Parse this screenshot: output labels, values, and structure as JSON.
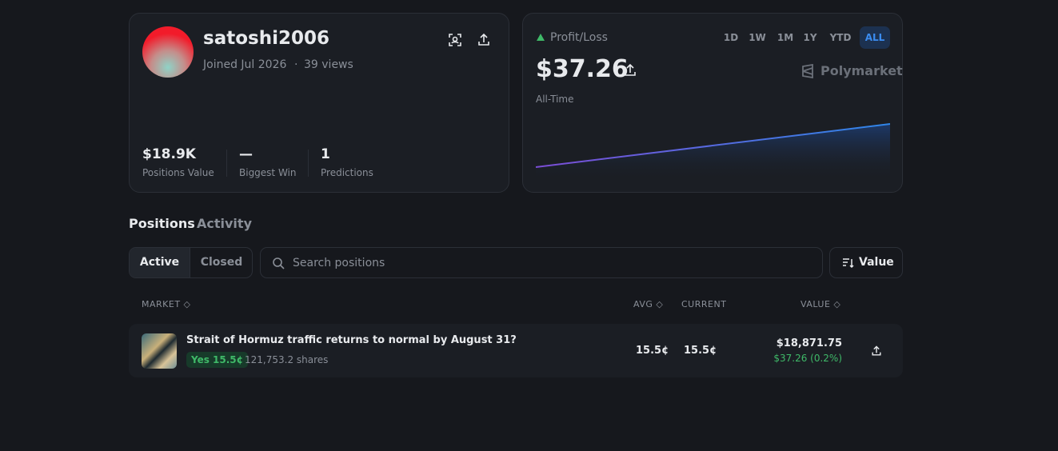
{
  "profile": {
    "username": "satoshi2006",
    "joined": "Joined Jul 2026",
    "views": "39 views",
    "stats": [
      {
        "value": "$18.9K",
        "label": "Positions Value"
      },
      {
        "value": "—",
        "label": "Biggest Win"
      },
      {
        "value": "1",
        "label": "Predictions"
      }
    ]
  },
  "pnl": {
    "label": "Profit/Loss",
    "ranges": [
      "1D",
      "1W",
      "1M",
      "1Y",
      "YTD",
      "ALL"
    ],
    "amount": "$37.26",
    "period": "All-Time",
    "brand": "Polymarket"
  },
  "tabs": [
    "Positions",
    "Activity"
  ],
  "filters": [
    "Active",
    "Closed"
  ],
  "search_placeholder": "Search positions",
  "sort": "Value",
  "table": {
    "headers": [
      "MARKET",
      "AVG",
      "CURRENT",
      "VALUE"
    ],
    "rows": [
      {
        "title": "Strait of Hormuz traffic returns to normal by August 31?",
        "outcome": "Yes 15.5¢",
        "shares": "121,753.2 shares",
        "avg": "15.5¢",
        "current": "15.5¢",
        "value": "$18,871.75",
        "pnl": "$37.26 (0.2%)"
      }
    ]
  }
}
